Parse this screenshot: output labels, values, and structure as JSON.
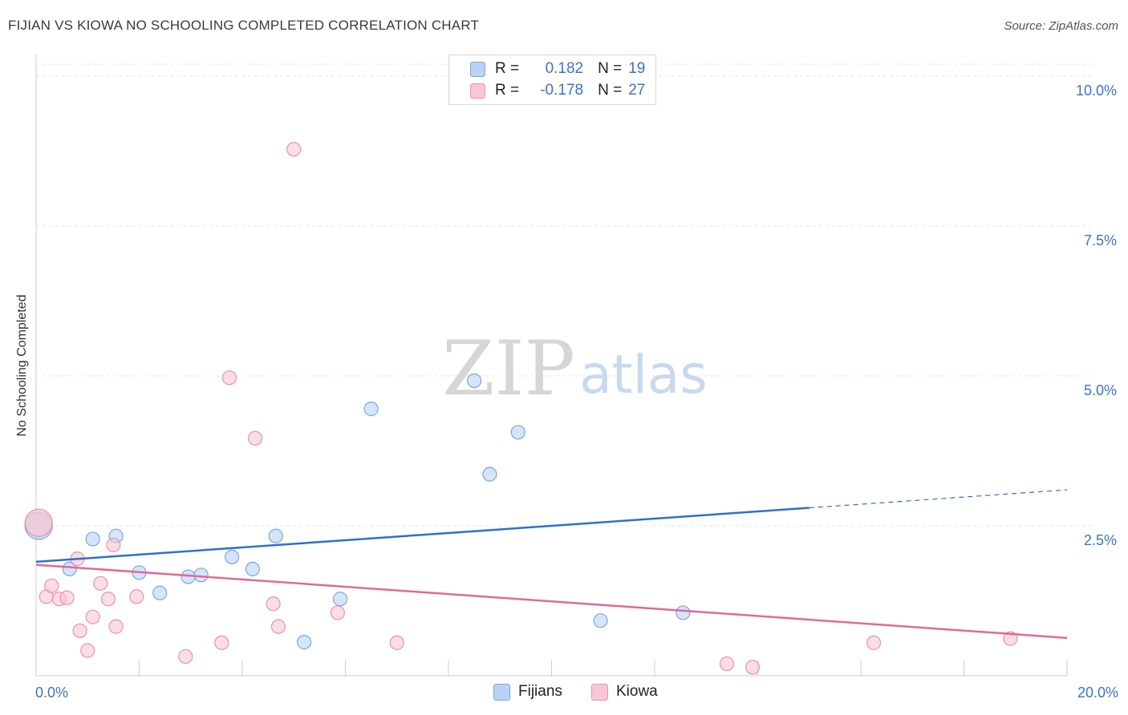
{
  "header": {
    "title": "FIJIAN VS KIOWA NO SCHOOLING COMPLETED CORRELATION CHART",
    "source": "Source: ZipAtlas.com"
  },
  "watermark": {
    "zip": "ZIP",
    "atlas": "atlas"
  },
  "legend": {
    "r_label": "R =",
    "n_label": "N =",
    "series": [
      {
        "name": "Fijians",
        "r": "0.182",
        "n": "19",
        "fill": "#b9d3f4",
        "stroke": "#7aa6e0"
      },
      {
        "name": "Kiowa",
        "r": "-0.178",
        "n": "27",
        "fill": "#f8c7d4",
        "stroke": "#e992ad"
      }
    ]
  },
  "colors": {
    "blue_line": "#2e70cc",
    "pink_line": "#e0699a",
    "axis_text": "#3b74c6",
    "grid": "#e4e4e4"
  },
  "chart_data": {
    "type": "scatter",
    "title": "FIJIAN VS KIOWA NO SCHOOLING COMPLETED CORRELATION CHART",
    "ylabel": "No Schooling Completed",
    "xlim": [
      0,
      20
    ],
    "ylim": [
      0,
      10.2
    ],
    "x_tick_labels": [
      "0.0%",
      "20.0%"
    ],
    "y_ticks": [
      2.5,
      5.0,
      7.5,
      10.0
    ],
    "y_tick_labels": [
      "2.5%",
      "5.0%",
      "7.5%",
      "10.0%"
    ],
    "grid": true,
    "legend_position": "top-center",
    "series": [
      {
        "name": "Fijians",
        "points": [
          [
            0.05,
            2.5
          ],
          [
            1.1,
            2.28
          ],
          [
            1.55,
            2.33
          ],
          [
            0.65,
            1.78
          ],
          [
            2.0,
            1.72
          ],
          [
            2.4,
            1.38
          ],
          [
            2.95,
            1.65
          ],
          [
            3.2,
            1.68
          ],
          [
            3.8,
            1.98
          ],
          [
            4.2,
            1.78
          ],
          [
            4.65,
            2.33
          ],
          [
            5.2,
            0.56
          ],
          [
            5.9,
            1.28
          ],
          [
            6.5,
            4.45
          ],
          [
            8.5,
            4.92
          ],
          [
            8.8,
            3.36
          ],
          [
            9.35,
            4.06
          ],
          [
            10.95,
            0.92
          ],
          [
            12.55,
            1.05
          ]
        ],
        "trend": {
          "x": [
            0,
            15
          ],
          "y": [
            1.9,
            2.8
          ],
          "dashed_to": {
            "x": 20,
            "y": 3.1
          }
        }
      },
      {
        "name": "Kiowa",
        "points": [
          [
            0.05,
            2.55
          ],
          [
            0.2,
            1.32
          ],
          [
            0.3,
            1.5
          ],
          [
            0.45,
            1.28
          ],
          [
            0.6,
            1.3
          ],
          [
            0.8,
            1.95
          ],
          [
            0.85,
            0.75
          ],
          [
            1.0,
            0.42
          ],
          [
            1.1,
            0.98
          ],
          [
            1.25,
            1.54
          ],
          [
            1.4,
            1.28
          ],
          [
            1.5,
            2.18
          ],
          [
            1.55,
            0.82
          ],
          [
            1.95,
            1.32
          ],
          [
            2.9,
            0.32
          ],
          [
            3.6,
            0.55
          ],
          [
            3.75,
            4.97
          ],
          [
            4.25,
            3.96
          ],
          [
            4.6,
            1.2
          ],
          [
            4.7,
            0.82
          ],
          [
            5.0,
            8.78
          ],
          [
            5.85,
            1.05
          ],
          [
            7.0,
            0.55
          ],
          [
            13.4,
            0.2
          ],
          [
            13.9,
            0.14
          ],
          [
            16.25,
            0.55
          ],
          [
            18.9,
            0.62
          ]
        ],
        "trend": {
          "x": [
            0,
            20
          ],
          "y": [
            1.85,
            0.63
          ]
        }
      }
    ]
  }
}
